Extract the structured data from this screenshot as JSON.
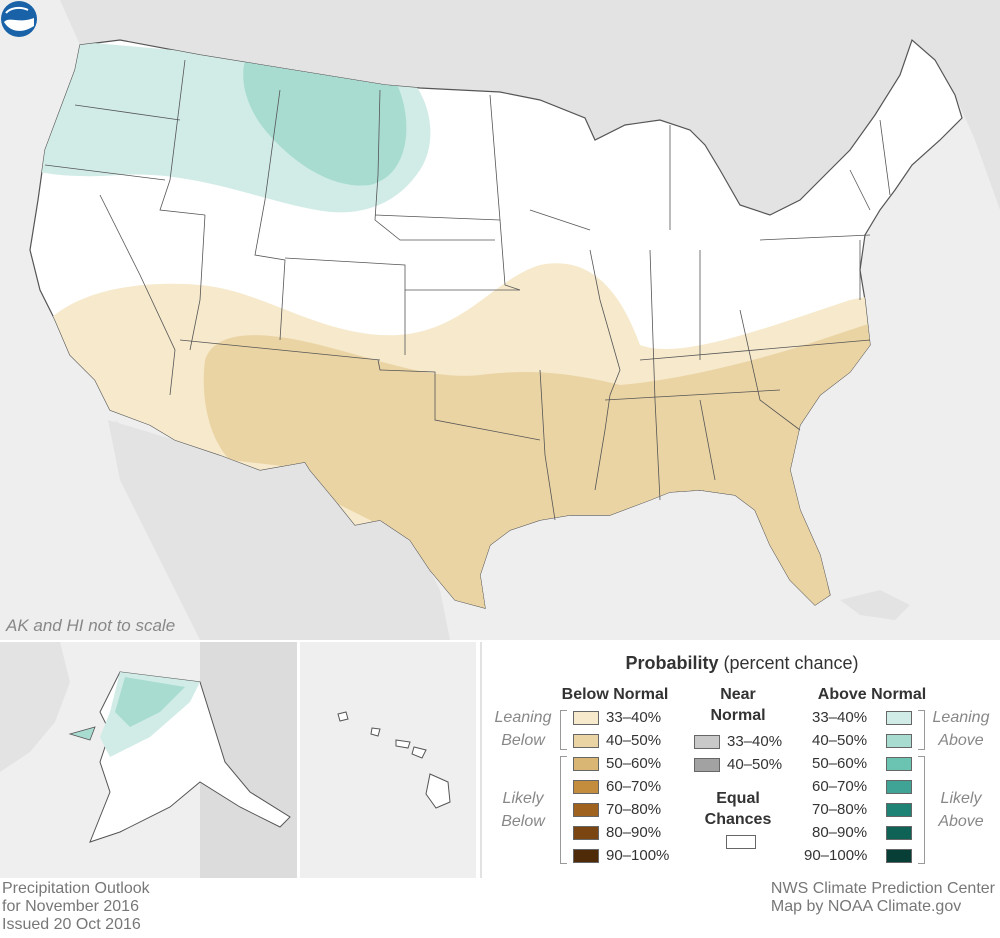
{
  "map": {
    "scale_note": "AK and HI not to scale",
    "colors": {
      "land_outside": "#e3e3e3",
      "water": "#eeeeee",
      "equal_chances": "#ffffff",
      "below_33_40": "#f6e9cc",
      "below_40_50": "#ebd4a4",
      "above_33_40": "#d1ece7",
      "above_40_50": "#a8dcd1",
      "border": "#555555"
    },
    "logo_icon": "noaa-logo-icon"
  },
  "legend": {
    "title_bold": "Probability",
    "title_rest": " (percent chance)",
    "below_header": "Below Normal",
    "near_header_1": "Near",
    "near_header_2": "Normal",
    "above_header": "Above Normal",
    "leaning_below_1": "Leaning",
    "leaning_below_2": "Below",
    "likely_below_1": "Likely",
    "likely_below_2": "Below",
    "leaning_above_1": "Leaning",
    "leaning_above_2": "Above",
    "likely_above_1": "Likely",
    "likely_above_2": "Above",
    "equal_1": "Equal",
    "equal_2": "Chances",
    "below": [
      {
        "label": "33–40%",
        "color": "#f6e9cc"
      },
      {
        "label": "40–50%",
        "color": "#ebd4a4"
      },
      {
        "label": "50–60%",
        "color": "#d9b673"
      },
      {
        "label": "60–70%",
        "color": "#c48d3e"
      },
      {
        "label": "70–80%",
        "color": "#a0621f"
      },
      {
        "label": "80–90%",
        "color": "#7a4510"
      },
      {
        "label": "90–100%",
        "color": "#4e2a08"
      }
    ],
    "near": [
      {
        "label": "33–40%",
        "color": "#c9c9c9"
      },
      {
        "label": "40–50%",
        "color": "#a2a2a2"
      }
    ],
    "above": [
      {
        "label": "33–40%",
        "color": "#d1ece7"
      },
      {
        "label": "40–50%",
        "color": "#a8dcd1"
      },
      {
        "label": "50–60%",
        "color": "#6bc3b1"
      },
      {
        "label": "60–70%",
        "color": "#3fa496"
      },
      {
        "label": "70–80%",
        "color": "#1e8275"
      },
      {
        "label": "80–90%",
        "color": "#0e6356"
      },
      {
        "label": "90–100%",
        "color": "#073f36"
      }
    ],
    "equal_color": "#ffffff"
  },
  "footer": {
    "left_line1": "Precipitation Outlook",
    "left_line2": "for November 2016",
    "left_line3": "Issued 20 Oct 2016",
    "right_line1": "NWS Climate Prediction Center",
    "right_line2": "Map by NOAA Climate.gov"
  }
}
